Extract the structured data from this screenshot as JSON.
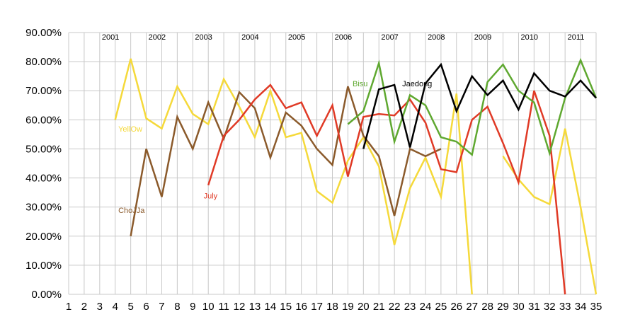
{
  "chart_data": {
    "type": "line",
    "x": [
      1,
      2,
      3,
      4,
      5,
      6,
      7,
      8,
      9,
      10,
      11,
      12,
      13,
      14,
      15,
      16,
      17,
      18,
      19,
      20,
      21,
      22,
      23,
      24,
      25,
      26,
      27,
      28,
      29,
      30,
      31,
      32,
      33,
      34,
      35
    ],
    "x_tick_labels": [
      "1",
      "2",
      "3",
      "4",
      "5",
      "6",
      "7",
      "8",
      "9",
      "10",
      "11",
      "12",
      "13",
      "14",
      "15",
      "16",
      "17",
      "18",
      "19",
      "20",
      "21",
      "22",
      "23",
      "24",
      "25",
      "26",
      "27",
      "28",
      "29",
      "30",
      "31",
      "32",
      "33",
      "34",
      "35"
    ],
    "y_tick_labels": [
      "0.00%",
      "10.00%",
      "20.00%",
      "30.00%",
      "40.00%",
      "50.00%",
      "60.00%",
      "70.00%",
      "80.00%",
      "90.00%"
    ],
    "ylim": [
      0,
      90
    ],
    "grid": true,
    "year_labels": [
      {
        "label": "2001",
        "x": 3.7
      },
      {
        "label": "2002",
        "x": 6.7
      },
      {
        "label": "2003",
        "x": 9.7
      },
      {
        "label": "2004",
        "x": 12.7
      },
      {
        "label": "2005",
        "x": 15.7
      },
      {
        "label": "2006",
        "x": 18.7
      },
      {
        "label": "2007",
        "x": 21.7
      },
      {
        "label": "2008",
        "x": 24.7
      },
      {
        "label": "2009",
        "x": 27.7
      },
      {
        "label": "2010",
        "x": 30.7
      },
      {
        "label": "2011",
        "x": 33.7
      }
    ],
    "series": [
      {
        "name": "YellOw",
        "color": "#f5d93a",
        "label_x": 4.2,
        "label_y": 56,
        "values": [
          null,
          null,
          null,
          60,
          81,
          60.5,
          57,
          71.5,
          62,
          58.5,
          74,
          64.5,
          54,
          70,
          54,
          55.5,
          35.5,
          31.5,
          46,
          54,
          44,
          17,
          36.5,
          47,
          33.5,
          69,
          0,
          null,
          47.5,
          39.5,
          33.5,
          31,
          57,
          30,
          0
        ]
      },
      {
        "name": "ChoJJa",
        "color": "#8b5a2b",
        "label_x": 4.2,
        "label_y": 28,
        "values": [
          null,
          null,
          null,
          null,
          20,
          50,
          33.5,
          61,
          50,
          66,
          53.5,
          69.5,
          64,
          47,
          62.5,
          58,
          50,
          44.5,
          71.5,
          54.5,
          47.5,
          27,
          50,
          47.5,
          50,
          null,
          null,
          null,
          null,
          null,
          null,
          null,
          null,
          null,
          null
        ]
      },
      {
        "name": "July",
        "color": "#e03a26",
        "label_x": 9.7,
        "label_y": 33,
        "values": [
          null,
          null,
          null,
          null,
          null,
          null,
          null,
          null,
          null,
          37.5,
          54.5,
          60,
          67,
          72,
          64,
          66,
          54.5,
          65,
          40.5,
          61,
          62,
          61.5,
          67,
          59,
          43,
          42,
          60,
          64.5,
          52,
          38.5,
          70,
          54.5,
          0,
          null,
          null
        ]
      },
      {
        "name": "Bisu",
        "color": "#5fa830",
        "label_x": 19.3,
        "label_y": 71.5,
        "values": [
          null,
          null,
          null,
          null,
          null,
          null,
          null,
          null,
          null,
          null,
          null,
          null,
          null,
          null,
          null,
          null,
          null,
          null,
          58.5,
          63,
          79.5,
          52.5,
          68.5,
          65,
          54,
          52.5,
          48,
          73,
          79,
          70,
          66,
          48.5,
          67.5,
          80.5,
          67.5
        ]
      },
      {
        "name": "Jaedong",
        "color": "#000000",
        "label_x": 22.5,
        "label_y": 71.5,
        "values": [
          null,
          null,
          null,
          null,
          null,
          null,
          null,
          null,
          null,
          null,
          null,
          null,
          null,
          null,
          null,
          null,
          null,
          null,
          null,
          50,
          70.5,
          72,
          50.5,
          72.5,
          79,
          63,
          75,
          68.5,
          73.5,
          63.5,
          76,
          70,
          68,
          73.5,
          67.5
        ]
      }
    ]
  }
}
